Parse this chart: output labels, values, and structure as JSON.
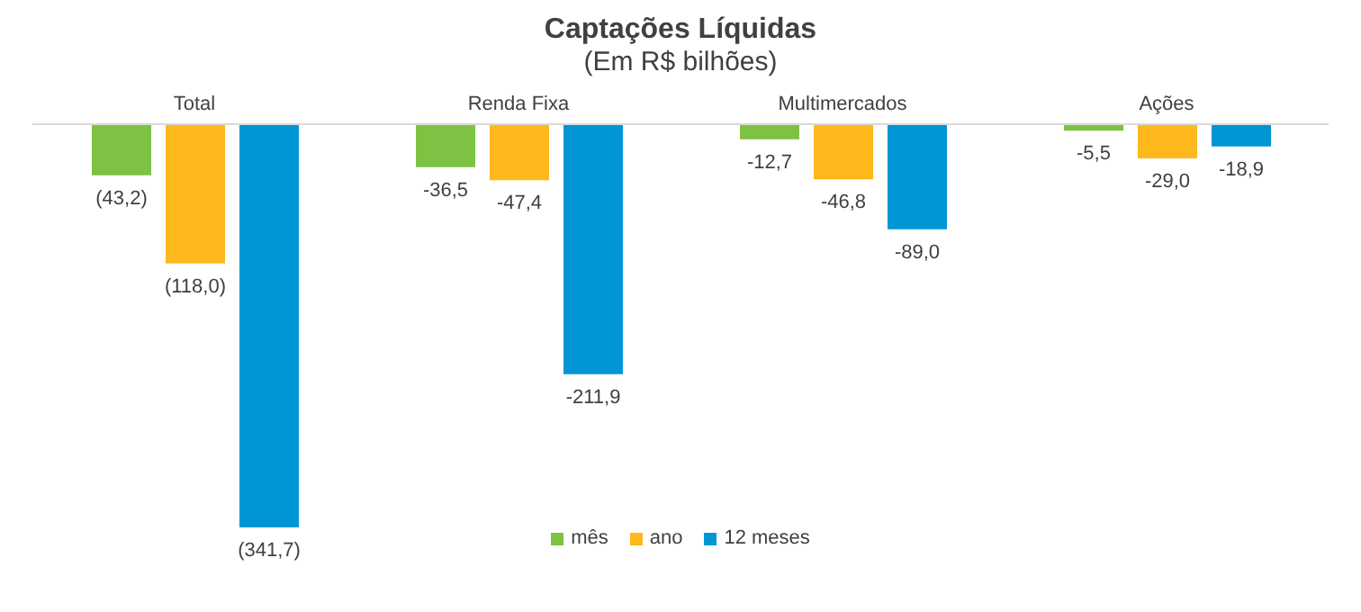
{
  "chart_data": {
    "type": "bar",
    "title": "Captações Líquidas",
    "subtitle": "(Em R$ bilhões)",
    "categories": [
      "Total",
      "Renda Fixa",
      "Multimercados",
      "Ações"
    ],
    "series": [
      {
        "name": "mês",
        "color": "#7dc242",
        "values": [
          -43.2,
          -36.5,
          -12.7,
          -5.5
        ],
        "value_labels": [
          "(43,2)",
          "-36,5",
          "-12,7",
          "-5,5"
        ]
      },
      {
        "name": "ano",
        "color": "#ffb81c",
        "values": [
          -118.0,
          -47.4,
          -46.8,
          -29.0
        ],
        "value_labels": [
          "(118,0)",
          "-47,4",
          "-46,8",
          "-29,0"
        ]
      },
      {
        "name": "12 meses",
        "color": "#0096d6",
        "values": [
          -341.7,
          -211.9,
          -89.0,
          -18.9
        ],
        "value_labels": [
          "(341,7)",
          "-211,9",
          "-89,0",
          "-18,9"
        ]
      }
    ],
    "legend": "bottom"
  }
}
